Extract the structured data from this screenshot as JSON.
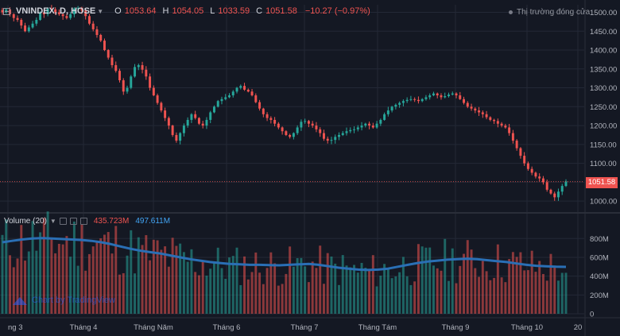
{
  "header": {
    "symbol": "VNINDEX, D, HOSE",
    "open_label": "O",
    "open": "1053.64",
    "high_label": "H",
    "high": "1054.05",
    "low_label": "L",
    "low": "1033.59",
    "close_label": "C",
    "close": "1051.58",
    "change": "−10.27 (−0.97%)",
    "market_status": "Thị trường đóng cửa"
  },
  "volume_legend": {
    "label": "Volume (20)",
    "volume": "435.723M",
    "ma": "497.611M"
  },
  "watermark": "Chart by TradingView",
  "last_price_tag": "1051.58",
  "colors": {
    "background": "#141823",
    "up": "#26a69a",
    "down": "#ef5350",
    "volume_ma": "#2a6fb5",
    "grid": "#232836",
    "axis_text": "#b2b5be"
  },
  "chart_data": [
    {
      "type": "candlestick",
      "title": "VNINDEX, D, HOSE",
      "ylim": [
        975,
        1520
      ],
      "y_ticks": [
        1000,
        1050,
        1100,
        1150,
        1200,
        1250,
        1300,
        1350,
        1400,
        1450,
        1500
      ],
      "y_tick_labels": [
        "1000.00",
        "1050.00",
        "1100.00",
        "1150.00",
        "1200.00",
        "1250.00",
        "1300.00",
        "1350.00",
        "1400.00",
        "1450.00",
        "1500.00"
      ],
      "x_labels": [
        "ng 3",
        "Tháng 4",
        "Tháng Năm",
        "Tháng 6",
        "Tháng 7",
        "Tháng Tám",
        "Tháng 9",
        "Tháng 10",
        "20"
      ],
      "last_price": 1051.58,
      "close_series": [
        1500,
        1508,
        1495,
        1485,
        1480,
        1465,
        1450,
        1460,
        1470,
        1480,
        1500,
        1495,
        1510,
        1508,
        1500,
        1495,
        1490,
        1485,
        1495,
        1510,
        1512,
        1505,
        1490,
        1470,
        1455,
        1440,
        1425,
        1400,
        1380,
        1360,
        1345,
        1320,
        1290,
        1300,
        1330,
        1355,
        1360,
        1348,
        1330,
        1300,
        1280,
        1260,
        1240,
        1220,
        1200,
        1175,
        1160,
        1180,
        1200,
        1215,
        1230,
        1220,
        1205,
        1200,
        1215,
        1235,
        1250,
        1265,
        1270,
        1275,
        1280,
        1290,
        1300,
        1305,
        1295,
        1290,
        1280,
        1262,
        1245,
        1230,
        1220,
        1215,
        1205,
        1195,
        1185,
        1175,
        1170,
        1180,
        1195,
        1210,
        1212,
        1205,
        1200,
        1190,
        1180,
        1165,
        1160,
        1162,
        1170,
        1175,
        1180,
        1185,
        1188,
        1190,
        1195,
        1200,
        1205,
        1200,
        1195,
        1205,
        1215,
        1230,
        1240,
        1250,
        1255,
        1260,
        1265,
        1268,
        1270,
        1268,
        1265,
        1270,
        1275,
        1280,
        1285,
        1280,
        1275,
        1278,
        1282,
        1285,
        1280,
        1270,
        1260,
        1250,
        1245,
        1240,
        1235,
        1230,
        1222,
        1215,
        1212,
        1205,
        1200,
        1195,
        1180,
        1160,
        1140,
        1120,
        1100,
        1085,
        1075,
        1065,
        1060,
        1050,
        1030,
        1020,
        1010,
        1025,
        1040,
        1052
      ]
    },
    {
      "type": "bar",
      "title": "Volume (20)",
      "ylim": [
        0,
        870
      ],
      "y_ticks": [
        0,
        200,
        400,
        600,
        800
      ],
      "y_tick_labels": [
        "0",
        "200M",
        "400M",
        "600M",
        "800M"
      ],
      "last_volume_m": 435.723,
      "last_ma_m": 497.611,
      "ma_series": [
        760,
        775,
        790,
        800,
        805,
        800,
        795,
        790,
        785,
        775,
        760,
        740,
        715,
        690,
        670,
        655,
        640,
        620,
        600,
        580,
        565,
        550,
        540,
        530,
        525,
        520,
        520,
        518,
        515,
        520,
        525,
        530,
        520,
        505,
        490,
        480,
        470,
        465,
        470,
        480,
        500,
        520,
        540,
        555,
        565,
        575,
        580,
        585,
        580,
        570,
        560,
        550,
        535,
        520,
        510,
        505,
        500,
        498
      ]
    }
  ]
}
